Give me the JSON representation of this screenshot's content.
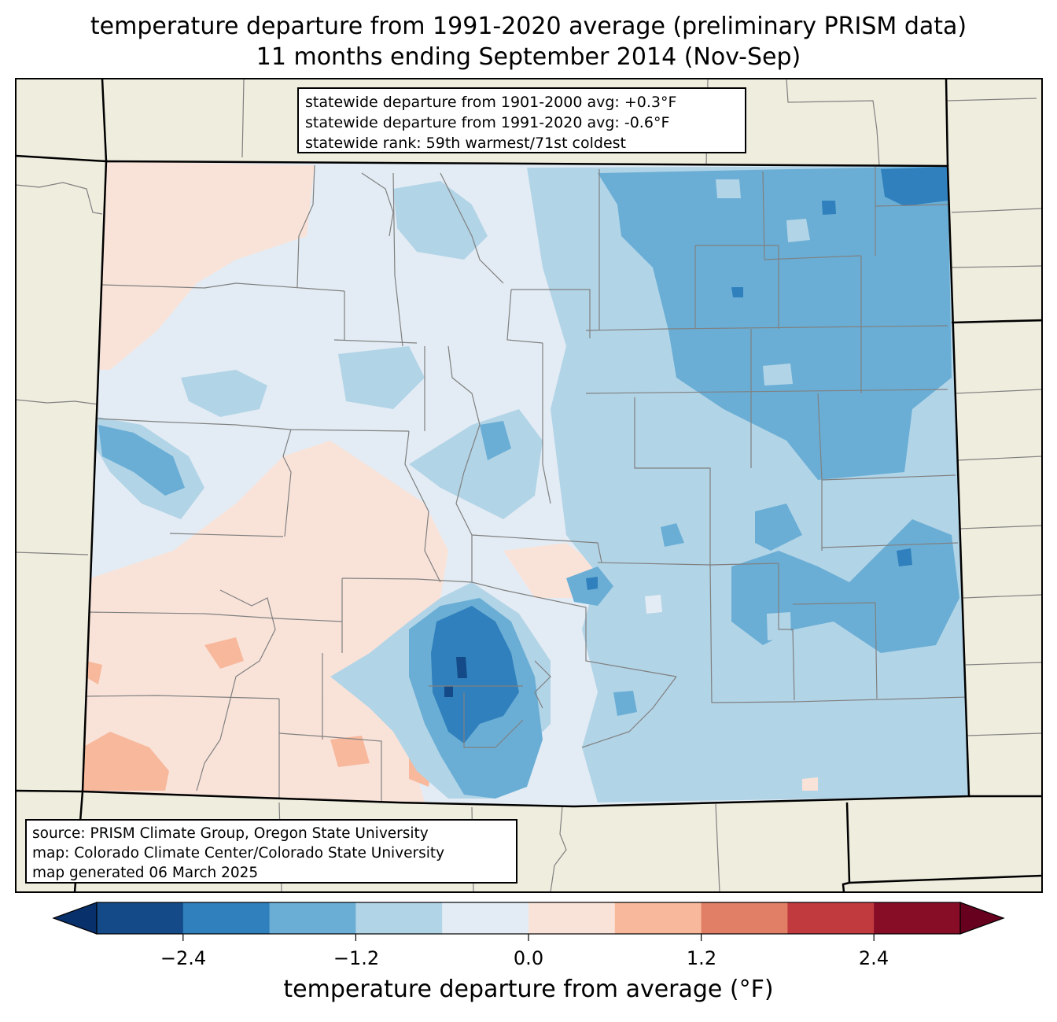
{
  "title": {
    "line1": "temperature departure from 1991-2020 average (preliminary PRISM data)",
    "line2": "11 months ending September 2014 (Nov-Sep)"
  },
  "stats": {
    "line1": "statewide departure from 1901-2000 avg: +0.3°F",
    "line2": "statewide departure from 1991-2020 avg: -0.6°F",
    "line3": "statewide rank: 59th warmest/71st coldest"
  },
  "source": {
    "line1": "source: PRISM Climate Group, Oregon State University",
    "line2": "map: Colorado Climate Center/Colorado State University",
    "line3": "map generated 06 March 2025"
  },
  "colorbar": {
    "label": "temperature departure from average (°F)",
    "ticks": [
      "−2.4",
      "−1.2",
      "0.0",
      "1.2",
      "2.4"
    ],
    "bins": [
      -3.0,
      -2.4,
      -1.8,
      -1.2,
      -0.6,
      0.0,
      0.6,
      1.2,
      1.8,
      2.4,
      3.0
    ],
    "colors": [
      "#08306b",
      "#134a87",
      "#3080bd",
      "#6aaed5",
      "#b2d4e7",
      "#e3ecf4",
      "#f9e3d9",
      "#f7b89c",
      "#e07f66",
      "#c03a3e",
      "#870c26",
      "#67001f"
    ]
  },
  "map_colors": {
    "land_outside": "#efedde",
    "state_border": "#000000",
    "county_lines": "#808080"
  }
}
